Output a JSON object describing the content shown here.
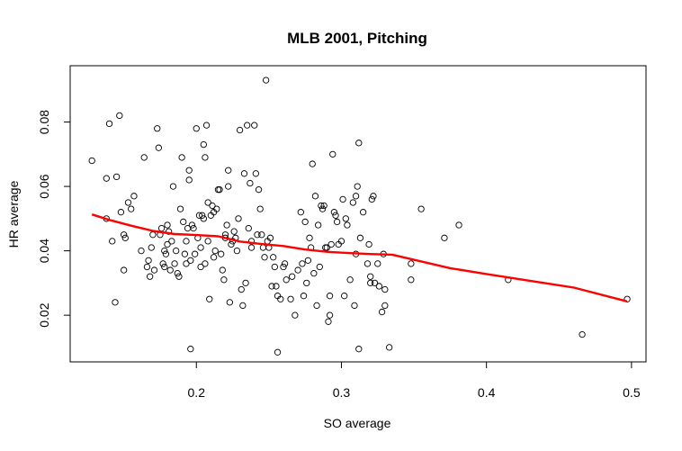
{
  "chart_data": {
    "type": "scatter",
    "title": "MLB 2001, Pitching",
    "xlabel": "SO average",
    "ylabel": "HR average",
    "xlim": [
      0.113,
      0.51
    ],
    "ylim": [
      0.0055,
      0.0975
    ],
    "xticks": [
      {
        "value": 0.2,
        "label": "0.2"
      },
      {
        "value": 0.3,
        "label": "0.3"
      },
      {
        "value": 0.4,
        "label": "0.4"
      },
      {
        "value": 0.5,
        "label": "0.5"
      }
    ],
    "yticks": [
      {
        "value": 0.02,
        "label": "0.02"
      },
      {
        "value": 0.04,
        "label": "0.04"
      },
      {
        "value": 0.06,
        "label": "0.06"
      },
      {
        "value": 0.08,
        "label": "0.08"
      }
    ],
    "points_color": "#000000",
    "points": [
      [
        0.128,
        0.068
      ],
      [
        0.138,
        0.0625
      ],
      [
        0.138,
        0.05
      ],
      [
        0.14,
        0.0795
      ],
      [
        0.142,
        0.043
      ],
      [
        0.144,
        0.024
      ],
      [
        0.145,
        0.063
      ],
      [
        0.147,
        0.082
      ],
      [
        0.148,
        0.052
      ],
      [
        0.15,
        0.034
      ],
      [
        0.15,
        0.045
      ],
      [
        0.151,
        0.044
      ],
      [
        0.153,
        0.055
      ],
      [
        0.155,
        0.053
      ],
      [
        0.157,
        0.057
      ],
      [
        0.162,
        0.04
      ],
      [
        0.164,
        0.069
      ],
      [
        0.166,
        0.035
      ],
      [
        0.167,
        0.037
      ],
      [
        0.168,
        0.032
      ],
      [
        0.169,
        0.041
      ],
      [
        0.17,
        0.045
      ],
      [
        0.171,
        0.034
      ],
      [
        0.173,
        0.078
      ],
      [
        0.174,
        0.072
      ],
      [
        0.175,
        0.045
      ],
      [
        0.176,
        0.047
      ],
      [
        0.177,
        0.036
      ],
      [
        0.178,
        0.04
      ],
      [
        0.178,
        0.035
      ],
      [
        0.179,
        0.039
      ],
      [
        0.18,
        0.048
      ],
      [
        0.18,
        0.042
      ],
      [
        0.181,
        0.046
      ],
      [
        0.182,
        0.034
      ],
      [
        0.183,
        0.043
      ],
      [
        0.184,
        0.06
      ],
      [
        0.185,
        0.036
      ],
      [
        0.186,
        0.04
      ],
      [
        0.187,
        0.033
      ],
      [
        0.188,
        0.032
      ],
      [
        0.189,
        0.053
      ],
      [
        0.19,
        0.069
      ],
      [
        0.191,
        0.049
      ],
      [
        0.192,
        0.039
      ],
      [
        0.193,
        0.036
      ],
      [
        0.193,
        0.043
      ],
      [
        0.194,
        0.047
      ],
      [
        0.195,
        0.065
      ],
      [
        0.195,
        0.062
      ],
      [
        0.196,
        0.037
      ],
      [
        0.196,
        0.0095
      ],
      [
        0.197,
        0.048
      ],
      [
        0.198,
        0.047
      ],
      [
        0.199,
        0.039
      ],
      [
        0.2,
        0.078
      ],
      [
        0.201,
        0.044
      ],
      [
        0.202,
        0.051
      ],
      [
        0.203,
        0.041
      ],
      [
        0.203,
        0.035
      ],
      [
        0.204,
        0.051
      ],
      [
        0.205,
        0.073
      ],
      [
        0.205,
        0.05
      ],
      [
        0.206,
        0.036
      ],
      [
        0.206,
        0.069
      ],
      [
        0.207,
        0.079
      ],
      [
        0.208,
        0.055
      ],
      [
        0.208,
        0.043
      ],
      [
        0.209,
        0.025
      ],
      [
        0.21,
        0.051
      ],
      [
        0.211,
        0.054
      ],
      [
        0.212,
        0.052
      ],
      [
        0.212,
        0.038
      ],
      [
        0.213,
        0.04
      ],
      [
        0.214,
        0.053
      ],
      [
        0.215,
        0.059
      ],
      [
        0.216,
        0.059
      ],
      [
        0.217,
        0.039
      ],
      [
        0.218,
        0.034
      ],
      [
        0.219,
        0.031
      ],
      [
        0.22,
        0.044
      ],
      [
        0.22,
        0.045
      ],
      [
        0.221,
        0.048
      ],
      [
        0.222,
        0.065
      ],
      [
        0.222,
        0.06
      ],
      [
        0.223,
        0.024
      ],
      [
        0.224,
        0.042
      ],
      [
        0.225,
        0.043
      ],
      [
        0.226,
        0.046
      ],
      [
        0.227,
        0.044
      ],
      [
        0.228,
        0.04
      ],
      [
        0.229,
        0.05
      ],
      [
        0.23,
        0.0775
      ],
      [
        0.231,
        0.028
      ],
      [
        0.232,
        0.023
      ],
      [
        0.233,
        0.064
      ],
      [
        0.234,
        0.03
      ],
      [
        0.235,
        0.079
      ],
      [
        0.236,
        0.047
      ],
      [
        0.237,
        0.061
      ],
      [
        0.238,
        0.041
      ],
      [
        0.238,
        0.043
      ],
      [
        0.24,
        0.079
      ],
      [
        0.241,
        0.064
      ],
      [
        0.242,
        0.045
      ],
      [
        0.243,
        0.059
      ],
      [
        0.244,
        0.053
      ],
      [
        0.245,
        0.045
      ],
      [
        0.246,
        0.041
      ],
      [
        0.247,
        0.038
      ],
      [
        0.248,
        0.093
      ],
      [
        0.249,
        0.043
      ],
      [
        0.25,
        0.041
      ],
      [
        0.251,
        0.044
      ],
      [
        0.252,
        0.029
      ],
      [
        0.253,
        0.038
      ],
      [
        0.254,
        0.035
      ],
      [
        0.255,
        0.029
      ],
      [
        0.256,
        0.026
      ],
      [
        0.256,
        0.0085
      ],
      [
        0.258,
        0.025
      ],
      [
        0.26,
        0.035
      ],
      [
        0.261,
        0.036
      ],
      [
        0.262,
        0.031
      ],
      [
        0.265,
        0.025
      ],
      [
        0.266,
        0.032
      ],
      [
        0.268,
        0.02
      ],
      [
        0.27,
        0.034
      ],
      [
        0.272,
        0.052
      ],
      [
        0.273,
        0.036
      ],
      [
        0.274,
        0.026
      ],
      [
        0.275,
        0.049
      ],
      [
        0.276,
        0.03
      ],
      [
        0.277,
        0.037
      ],
      [
        0.278,
        0.044
      ],
      [
        0.279,
        0.041
      ],
      [
        0.28,
        0.067
      ],
      [
        0.281,
        0.033
      ],
      [
        0.282,
        0.057
      ],
      [
        0.283,
        0.023
      ],
      [
        0.284,
        0.048
      ],
      [
        0.285,
        0.035
      ],
      [
        0.286,
        0.054
      ],
      [
        0.287,
        0.053
      ],
      [
        0.288,
        0.054
      ],
      [
        0.289,
        0.041
      ],
      [
        0.29,
        0.041
      ],
      [
        0.291,
        0.018
      ],
      [
        0.292,
        0.02
      ],
      [
        0.292,
        0.026
      ],
      [
        0.293,
        0.042
      ],
      [
        0.294,
        0.07
      ],
      [
        0.295,
        0.052
      ],
      [
        0.296,
        0.051
      ],
      [
        0.297,
        0.049
      ],
      [
        0.298,
        0.042
      ],
      [
        0.3,
        0.043
      ],
      [
        0.301,
        0.056
      ],
      [
        0.302,
        0.026
      ],
      [
        0.303,
        0.05
      ],
      [
        0.304,
        0.048
      ],
      [
        0.306,
        0.031
      ],
      [
        0.308,
        0.055
      ],
      [
        0.309,
        0.023
      ],
      [
        0.31,
        0.039
      ],
      [
        0.31,
        0.057
      ],
      [
        0.311,
        0.06
      ],
      [
        0.312,
        0.0735
      ],
      [
        0.312,
        0.0095
      ],
      [
        0.313,
        0.044
      ],
      [
        0.315,
        0.052
      ],
      [
        0.318,
        0.036
      ],
      [
        0.319,
        0.042
      ],
      [
        0.32,
        0.032
      ],
      [
        0.32,
        0.03
      ],
      [
        0.321,
        0.056
      ],
      [
        0.322,
        0.057
      ],
      [
        0.323,
        0.03
      ],
      [
        0.325,
        0.036
      ],
      [
        0.326,
        0.029
      ],
      [
        0.328,
        0.021
      ],
      [
        0.329,
        0.039
      ],
      [
        0.33,
        0.028
      ],
      [
        0.33,
        0.023
      ],
      [
        0.333,
        0.01
      ],
      [
        0.348,
        0.036
      ],
      [
        0.348,
        0.031
      ],
      [
        0.355,
        0.053
      ],
      [
        0.371,
        0.044
      ],
      [
        0.381,
        0.048
      ],
      [
        0.415,
        0.031
      ],
      [
        0.466,
        0.014
      ],
      [
        0.497,
        0.025
      ]
    ],
    "smoother": {
      "color": "#ff0000",
      "x": [
        0.128,
        0.14,
        0.155,
        0.17,
        0.185,
        0.2,
        0.215,
        0.23,
        0.245,
        0.26,
        0.275,
        0.29,
        0.305,
        0.32,
        0.335,
        0.35,
        0.375,
        0.4,
        0.43,
        0.46,
        0.497
      ],
      "y": [
        0.0513,
        0.0496,
        0.0478,
        0.0462,
        0.0452,
        0.0449,
        0.0445,
        0.0429,
        0.0421,
        0.0415,
        0.0404,
        0.0397,
        0.0393,
        0.039,
        0.0388,
        0.0372,
        0.0346,
        0.0328,
        0.0307,
        0.0286,
        0.0243
      ]
    }
  }
}
